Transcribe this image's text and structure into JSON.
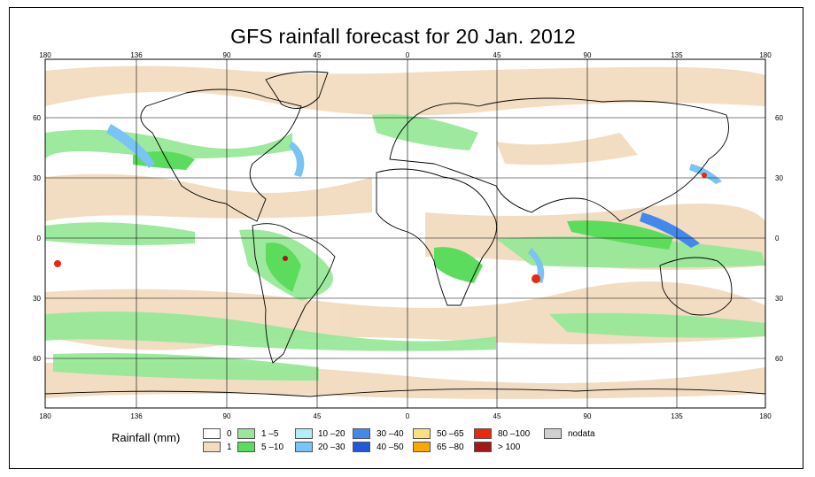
{
  "title": "GFS rainfall forecast for 20 Jan. 2012",
  "longitude_ticks": [
    "180",
    "136",
    "90",
    "45",
    "0",
    "45",
    "90",
    "135",
    "180"
  ],
  "latitude_ticks": [
    "60",
    "30",
    "0",
    "30",
    "60"
  ],
  "legend": {
    "title": "Rainfall (mm)",
    "items": [
      {
        "label": "0",
        "color": "#ffffff"
      },
      {
        "label": "1",
        "color": "#f2dcc0"
      },
      {
        "label": "1 –5",
        "color": "#98e898"
      },
      {
        "label": "5 –10",
        "color": "#5cdc5c"
      },
      {
        "label": "10 –20",
        "color": "#b4ecf8"
      },
      {
        "label": "20 –30",
        "color": "#78c4f4"
      },
      {
        "label": "30 –40",
        "color": "#4488ec"
      },
      {
        "label": "40 –50",
        "color": "#2058dc"
      },
      {
        "label": "50 –65",
        "color": "#fce080"
      },
      {
        "label": "65 –80",
        "color": "#f8a800"
      },
      {
        "label": "80 –100",
        "color": "#e82810"
      },
      {
        "label": "> 100",
        "color": "#a01818"
      },
      {
        "label": "nodata",
        "color": "#d0d0d0"
      }
    ]
  }
}
